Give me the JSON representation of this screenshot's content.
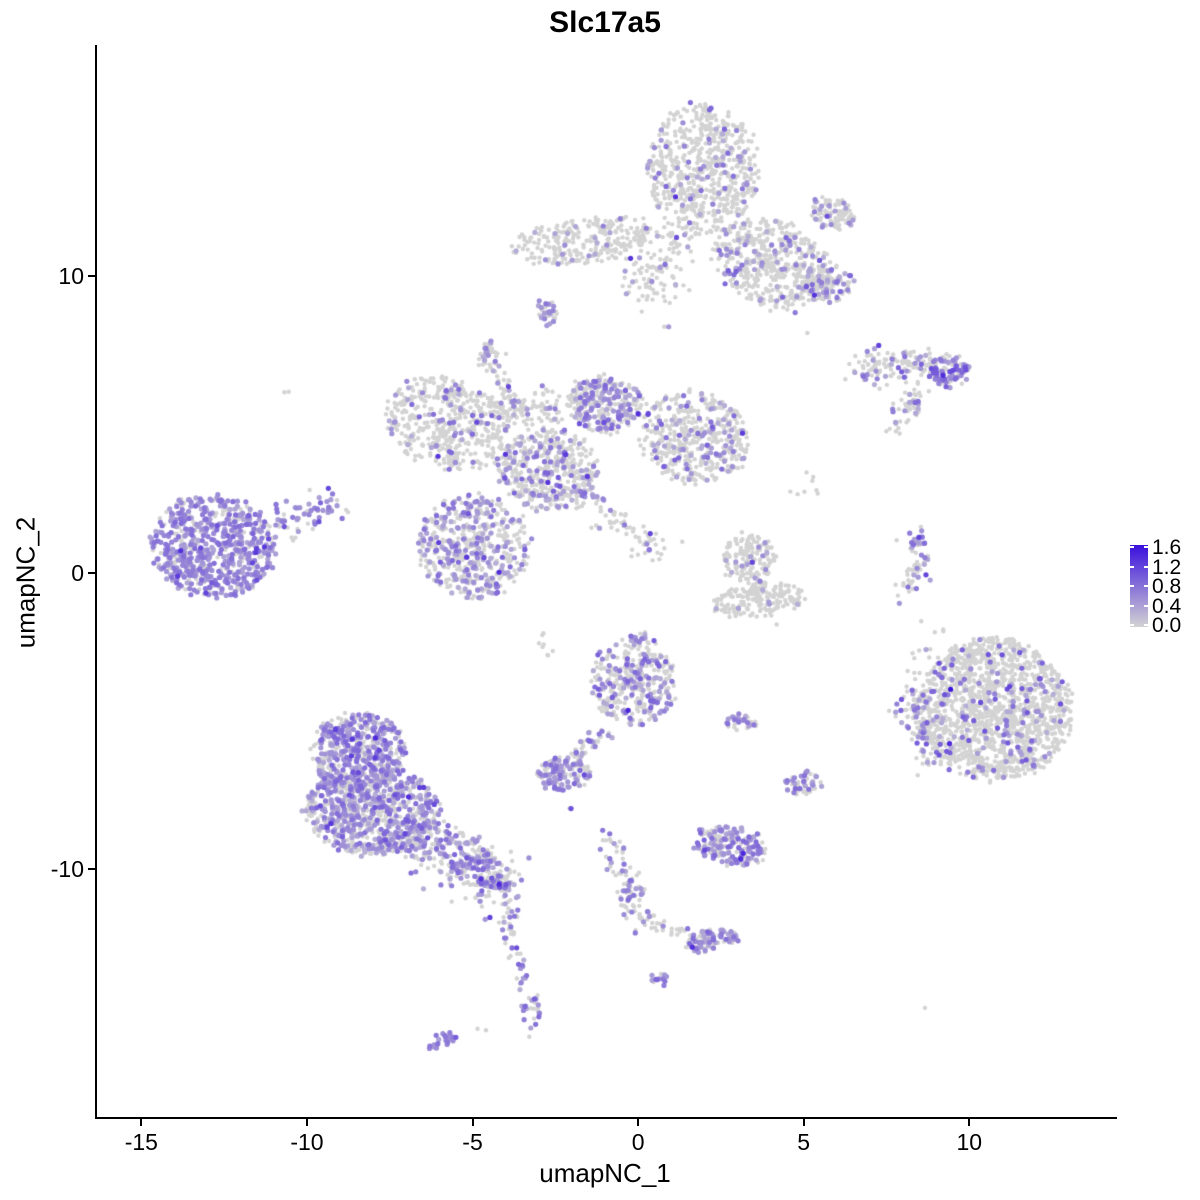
{
  "chart_data": {
    "type": "scatter",
    "title": "Slc17a5",
    "xlabel": "umapNC_1",
    "ylabel": "umapNC_2",
    "x_ticks": [
      -15,
      -10,
      -5,
      0,
      5,
      10
    ],
    "y_ticks": [
      10,
      0,
      -10
    ],
    "x_range": [
      -16.4,
      14.4
    ],
    "y_range": [
      -18.35,
      17.8
    ],
    "grid": "off",
    "legend_position": "right",
    "colorbar": {
      "labels": [
        "1.6",
        "1.2",
        "0.8",
        "0.4",
        "0.0"
      ],
      "values": [
        1.6,
        1.2,
        0.8,
        0.4,
        0.0
      ],
      "max_value": 1.6,
      "low_color": "#d3d3d3",
      "high_color": "#3a10dd"
    },
    "zero_expression_color": "#d3d3d3",
    "clusters": [
      {
        "name": "top-head",
        "kind": "blob",
        "cx": 1.9,
        "cy": 13.6,
        "rx": 1.7,
        "ry": 2.2,
        "rot": 0,
        "n": 650,
        "expr": 0.11,
        "vmin": 0.3,
        "vmax": 0.9,
        "pw": 1.8
      },
      {
        "name": "top-band",
        "kind": "blob",
        "cx": 4.0,
        "cy": 10.4,
        "rx": 1.9,
        "ry": 1.4,
        "rot": -30,
        "n": 520,
        "expr": 0.13,
        "vmin": 0.3,
        "vmax": 0.9,
        "pw": 1.8
      },
      {
        "name": "top-right-arm",
        "kind": "blob",
        "cx": 5.8,
        "cy": 12.1,
        "rx": 0.7,
        "ry": 0.5,
        "rot": -20,
        "n": 90,
        "expr": 0.2,
        "vmin": 0.3,
        "vmax": 0.8,
        "pw": 1.5
      },
      {
        "name": "top-left-arm",
        "kind": "blob",
        "cx": -1.75,
        "cy": 11.2,
        "rx": 2.2,
        "ry": 0.75,
        "rot": 8,
        "n": 260,
        "expr": 0.06,
        "vmin": 0.3,
        "vmax": 0.7,
        "pw": 1.5
      },
      {
        "name": "top-right-blob",
        "kind": "blob",
        "cx": 5.6,
        "cy": 9.75,
        "rx": 0.75,
        "ry": 0.6,
        "rot": 0,
        "n": 110,
        "expr": 0.3,
        "vmin": 0.3,
        "vmax": 0.9,
        "pw": 1.5
      },
      {
        "name": "small-blob-a5",
        "kind": "blob",
        "cx": -2.8,
        "cy": 8.8,
        "rx": 0.3,
        "ry": 0.45,
        "rot": 0,
        "n": 35,
        "expr": 0.5,
        "vmin": 0.3,
        "vmax": 0.8,
        "pw": 1.5
      },
      {
        "name": "top-stem",
        "kind": "trail",
        "path": [
          [
            0.8,
            11.5
          ],
          [
            0.3,
            9.4
          ]
        ],
        "w": 0.5,
        "n": 120,
        "expr": 0.1,
        "vmin": 0.3,
        "vmax": 0.8,
        "pw": 1.5
      },
      {
        "name": "small-blob-b1",
        "kind": "blob",
        "cx": -4.5,
        "cy": 7.3,
        "rx": 0.4,
        "ry": 0.5,
        "rot": 0,
        "n": 40,
        "expr": 0.45,
        "vmin": 0.3,
        "vmax": 0.8,
        "pw": 1.5
      },
      {
        "name": "trail-b2",
        "kind": "trail",
        "path": [
          [
            -4.2,
            6.6
          ],
          [
            -3.7,
            5.2
          ]
        ],
        "w": 0.12,
        "n": 28,
        "expr": 0.35,
        "vmin": 0.3,
        "vmax": 0.8,
        "pw": 1.5
      },
      {
        "name": "lone-dot-left",
        "kind": "blob",
        "cx": -10.7,
        "cy": 6.0,
        "rx": 0.07,
        "ry": 0.07,
        "rot": 0,
        "n": 2,
        "expr": 0,
        "vmin": 0.3,
        "vmax": 0.7,
        "pw": 1.5
      },
      {
        "name": "center-left-wing",
        "kind": "blob",
        "cx": -5.8,
        "cy": 5.0,
        "rx": 2.0,
        "ry": 1.5,
        "rot": -25,
        "n": 480,
        "expr": 0.1,
        "vmin": 0.3,
        "vmax": 0.9,
        "pw": 1.8
      },
      {
        "name": "center-bridge",
        "kind": "trail",
        "path": [
          [
            -4.4,
            5.6
          ],
          [
            -2.4,
            5.5
          ]
        ],
        "w": 0.35,
        "n": 110,
        "expr": 0.12,
        "vmin": 0.3,
        "vmax": 0.8,
        "pw": 1.5
      },
      {
        "name": "center-upper-mid",
        "kind": "blob",
        "cx": -1.1,
        "cy": 5.7,
        "rx": 1.1,
        "ry": 0.95,
        "rot": 0,
        "n": 300,
        "expr": 0.38,
        "vmin": 0.3,
        "vmax": 0.9,
        "pw": 1.8
      },
      {
        "name": "center-right-wing",
        "kind": "blob",
        "cx": 1.6,
        "cy": 4.6,
        "rx": 1.7,
        "ry": 1.5,
        "rot": -20,
        "n": 470,
        "expr": 0.22,
        "vmin": 0.3,
        "vmax": 0.95,
        "pw": 1.8
      },
      {
        "name": "center-mid",
        "kind": "blob",
        "cx": -2.8,
        "cy": 3.5,
        "rx": 1.5,
        "ry": 1.4,
        "rot": 0,
        "n": 420,
        "expr": 0.26,
        "vmin": 0.3,
        "vmax": 0.9,
        "pw": 1.8
      },
      {
        "name": "center-lower-lobe",
        "kind": "blob",
        "cx": -5.0,
        "cy": 0.9,
        "rx": 1.7,
        "ry": 1.75,
        "rot": 10,
        "n": 520,
        "expr": 0.36,
        "vmin": 0.3,
        "vmax": 0.9,
        "pw": 1.8
      },
      {
        "name": "center-streak",
        "kind": "trail",
        "path": [
          [
            -2.3,
            3.1
          ],
          [
            0.6,
            0.6
          ]
        ],
        "w": 0.25,
        "n": 90,
        "expr": 0.15,
        "vmin": 0.3,
        "vmax": 0.8,
        "pw": 1.5
      },
      {
        "name": "sparse-dots-c9",
        "kind": "blob",
        "cx": 5.0,
        "cy": 2.9,
        "rx": 0.45,
        "ry": 0.5,
        "rot": 0,
        "n": 8,
        "expr": 0.1,
        "vmin": 0.3,
        "vmax": 0.7,
        "pw": 1.5
      },
      {
        "name": "far-left-cluster",
        "kind": "blob",
        "cx": -12.9,
        "cy": 0.9,
        "rx": 1.9,
        "ry": 1.75,
        "rot": -10,
        "n": 680,
        "expr": 0.72,
        "vmin": 0.35,
        "vmax": 0.85,
        "pw": 1.2
      },
      {
        "name": "far-left-arm",
        "kind": "trail",
        "path": [
          [
            -11.3,
            1.5
          ],
          [
            -9.2,
            2.3
          ]
        ],
        "w": 0.3,
        "n": 70,
        "expr": 0.6,
        "vmin": 0.35,
        "vmax": 0.8,
        "pw": 1.2
      },
      {
        "name": "topright-strip",
        "kind": "trail",
        "path": [
          [
            6.6,
            6.9
          ],
          [
            8.9,
            7.05
          ]
        ],
        "w": 0.3,
        "n": 130,
        "expr": 0.25,
        "vmin": 0.3,
        "vmax": 0.9,
        "pw": 1.5
      },
      {
        "name": "topright-dense-end",
        "kind": "blob",
        "cx": 9.3,
        "cy": 6.8,
        "rx": 0.6,
        "ry": 0.5,
        "rot": 0,
        "n": 85,
        "expr": 0.7,
        "vmin": 0.4,
        "vmax": 1.1,
        "pw": 1.2
      },
      {
        "name": "topright-tail",
        "kind": "trail",
        "path": [
          [
            8.5,
            6.2
          ],
          [
            7.9,
            5.2
          ]
        ],
        "w": 0.2,
        "n": 40,
        "expr": 0.35,
        "vmin": 0.3,
        "vmax": 0.9,
        "pw": 1.5
      },
      {
        "name": "topright-dots",
        "kind": "blob",
        "cx": 7.7,
        "cy": 4.8,
        "rx": 0.3,
        "ry": 0.3,
        "rot": 0,
        "n": 6,
        "expr": 0.1,
        "vmin": 0.3,
        "vmax": 0.7,
        "pw": 1.5
      },
      {
        "name": "right-thin-strip",
        "kind": "trail",
        "path": [
          [
            8.3,
            1.5
          ],
          [
            8.45,
            0.3
          ],
          [
            7.9,
            -0.9
          ]
        ],
        "w": 0.18,
        "n": 65,
        "expr": 0.45,
        "vmin": 0.3,
        "vmax": 0.9,
        "pw": 1.5
      },
      {
        "name": "mid-small-upper",
        "kind": "blob",
        "cx": 3.3,
        "cy": 0.45,
        "rx": 0.8,
        "ry": 0.85,
        "rot": 0,
        "n": 150,
        "expr": 0.09,
        "vmin": 0.3,
        "vmax": 0.8,
        "pw": 1.8
      },
      {
        "name": "mid-small-lower",
        "kind": "blob",
        "cx": 3.6,
        "cy": -0.9,
        "rx": 1.4,
        "ry": 0.55,
        "rot": 8,
        "n": 190,
        "expr": 0.07,
        "vmin": 0.3,
        "vmax": 0.8,
        "pw": 1.8
      },
      {
        "name": "right-big-cluster",
        "kind": "blob",
        "cx": 10.7,
        "cy": -4.6,
        "rx": 2.3,
        "ry": 2.4,
        "rot": 15,
        "n": 1500,
        "expr": 0.105,
        "vmin": 0.3,
        "vmax": 1.1,
        "pw": 1.8
      },
      {
        "name": "right-big-tail",
        "kind": "trail",
        "path": [
          [
            8.15,
            -4.2
          ],
          [
            9.1,
            -6.4
          ]
        ],
        "w": 0.35,
        "n": 130,
        "expr": 0.3,
        "vmin": 0.3,
        "vmax": 1.1,
        "pw": 1.8
      },
      {
        "name": "right-scatter-dots",
        "kind": "blob",
        "cx": 8.6,
        "cy": -2.6,
        "rx": 0.7,
        "ry": 1.0,
        "rot": 0,
        "n": 14,
        "expr": 0.08,
        "vmin": 0.3,
        "vmax": 0.7,
        "pw": 1.5
      },
      {
        "name": "center-bottom-cluster",
        "kind": "blob",
        "cx": -0.2,
        "cy": -3.6,
        "rx": 1.25,
        "ry": 1.55,
        "rot": 0,
        "n": 360,
        "expr": 0.36,
        "vmin": 0.3,
        "vmax": 0.95,
        "pw": 1.8
      },
      {
        "name": "center-bottom-stem",
        "kind": "trail",
        "path": [
          [
            -1.0,
            -5.3
          ],
          [
            -2.1,
            -6.3
          ]
        ],
        "w": 0.15,
        "n": 45,
        "expr": 0.35,
        "vmin": 0.3,
        "vmax": 0.8,
        "pw": 1.5
      },
      {
        "name": "purple-blob-j",
        "kind": "blob",
        "cx": -2.3,
        "cy": -6.8,
        "rx": 0.8,
        "ry": 0.55,
        "rot": 0,
        "n": 130,
        "expr": 0.6,
        "vmin": 0.35,
        "vmax": 0.9,
        "pw": 1.5
      },
      {
        "name": "dot-below-j",
        "kind": "blob",
        "cx": -2.1,
        "cy": -8.0,
        "rx": 0.1,
        "ry": 0.1,
        "rot": 0,
        "n": 3,
        "expr": 0.3,
        "vmin": 0.3,
        "vmax": 0.6,
        "pw": 1.5
      },
      {
        "name": "small-strip-k",
        "kind": "blob",
        "cx": 3.0,
        "cy": -5.0,
        "rx": 0.55,
        "ry": 0.25,
        "rot": 0,
        "n": 32,
        "expr": 0.5,
        "vmin": 0.3,
        "vmax": 0.8,
        "pw": 1.5
      },
      {
        "name": "small-blob-l",
        "kind": "blob",
        "cx": 4.9,
        "cy": -7.1,
        "rx": 0.5,
        "ry": 0.4,
        "rot": 0,
        "n": 55,
        "expr": 0.55,
        "vmin": 0.35,
        "vmax": 0.9,
        "pw": 1.5
      },
      {
        "name": "bottom-mid-cluster",
        "kind": "blob",
        "cx": 2.7,
        "cy": -9.2,
        "rx": 1.1,
        "ry": 0.6,
        "rot": -10,
        "n": 190,
        "expr": 0.55,
        "vmin": 0.35,
        "vmax": 0.9,
        "pw": 1.5
      },
      {
        "name": "diag-trail-n",
        "kind": "trail",
        "path": [
          [
            -1.0,
            -8.9
          ],
          [
            -0.3,
            -10.6
          ],
          [
            -0.1,
            -11.7
          ]
        ],
        "w": 0.2,
        "n": 85,
        "expr": 0.35,
        "vmin": 0.3,
        "vmax": 0.85,
        "pw": 1.5
      },
      {
        "name": "diag-arm-n2",
        "kind": "trail",
        "path": [
          [
            0.0,
            -11.6
          ],
          [
            1.2,
            -12.1
          ]
        ],
        "w": 0.15,
        "n": 30,
        "expr": 0.2,
        "vmin": 0.3,
        "vmax": 0.8,
        "pw": 1.5
      },
      {
        "name": "elongated-o",
        "kind": "blob",
        "cx": 2.1,
        "cy": -12.4,
        "rx": 0.9,
        "ry": 0.35,
        "rot": 12,
        "n": 95,
        "expr": 0.5,
        "vmin": 0.35,
        "vmax": 0.9,
        "pw": 1.5
      },
      {
        "name": "tiny-purple-p",
        "kind": "blob",
        "cx": 0.6,
        "cy": -13.7,
        "rx": 0.22,
        "ry": 0.18,
        "rot": 0,
        "n": 14,
        "expr": 0.75,
        "vmin": 0.4,
        "vmax": 0.9,
        "pw": 1.2
      },
      {
        "name": "vert-trail-q",
        "kind": "trail",
        "path": [
          [
            -4.0,
            -11.1
          ],
          [
            -3.9,
            -12.3
          ],
          [
            -3.3,
            -14.2
          ],
          [
            -3.2,
            -15.3
          ]
        ],
        "w": 0.18,
        "n": 70,
        "expr": 0.5,
        "vmin": 0.3,
        "vmax": 0.9,
        "pw": 1.5
      },
      {
        "name": "lone-dot-q",
        "kind": "blob",
        "cx": -4.8,
        "cy": -15.4,
        "rx": 0.08,
        "ry": 0.08,
        "rot": 0,
        "n": 2,
        "expr": 0,
        "vmin": 0.3,
        "vmax": 0.6,
        "pw": 1.5
      },
      {
        "name": "small-diag-r",
        "kind": "blob",
        "cx": -6.0,
        "cy": -15.8,
        "rx": 0.45,
        "ry": 0.18,
        "rot": 25,
        "n": 26,
        "expr": 0.9,
        "vmin": 0.4,
        "vmax": 0.8,
        "pw": 1.2
      },
      {
        "name": "bottomleft-top-lobe",
        "kind": "blob",
        "cx": -8.5,
        "cy": -6.0,
        "rx": 1.4,
        "ry": 1.35,
        "rot": 0,
        "n": 480,
        "expr": 0.55,
        "vmin": 0.3,
        "vmax": 0.9,
        "pw": 1.5
      },
      {
        "name": "bottomleft-main",
        "kind": "blob",
        "cx": -8.1,
        "cy": -8.0,
        "rx": 2.1,
        "ry": 1.5,
        "rot": -5,
        "n": 820,
        "expr": 0.55,
        "vmin": 0.3,
        "vmax": 0.9,
        "pw": 1.5
      },
      {
        "name": "bottomleft-tail",
        "kind": "trail",
        "path": [
          [
            -6.6,
            -8.9
          ],
          [
            -4.3,
            -10.4
          ]
        ],
        "w": 0.45,
        "n": 300,
        "expr": 0.45,
        "vmin": 0.3,
        "vmax": 0.9,
        "pw": 1.5
      },
      {
        "name": "bottomleft-tail-tip",
        "kind": "blob",
        "cx": -4.3,
        "cy": -10.5,
        "rx": 0.4,
        "ry": 0.3,
        "rot": 0,
        "n": 50,
        "expr": 0.45,
        "vmin": 0.3,
        "vmax": 0.9,
        "pw": 1.5
      },
      {
        "name": "tail-sparse",
        "kind": "trail",
        "path": [
          [
            -5.0,
            -10.8
          ],
          [
            -4.6,
            -11.6
          ]
        ],
        "w": 0.15,
        "n": 8,
        "expr": 0.3,
        "vmin": 0.3,
        "vmax": 0.7,
        "pw": 1.5
      },
      {
        "name": "lone-dot-x1",
        "kind": "blob",
        "cx": 4.1,
        "cy": -1.9,
        "rx": 0.07,
        "ry": 0.07,
        "rot": 0,
        "n": 1,
        "expr": 0,
        "vmin": 0.3,
        "vmax": 0.6,
        "pw": 1.5
      },
      {
        "name": "lone-dot-x2",
        "kind": "blob",
        "cx": 5.1,
        "cy": 8.0,
        "rx": 0.07,
        "ry": 0.07,
        "rot": 0,
        "n": 1,
        "expr": 0,
        "vmin": 0.3,
        "vmax": 0.6,
        "pw": 1.5
      },
      {
        "name": "sparse-connector",
        "kind": "blob",
        "cx": -2.9,
        "cy": -2.5,
        "rx": 0.3,
        "ry": 0.4,
        "rot": 0,
        "n": 8,
        "expr": 0.1,
        "vmin": 0.3,
        "vmax": 0.6,
        "pw": 1.5
      },
      {
        "name": "lone-dot-x4",
        "kind": "blob",
        "cx": 8.6,
        "cy": -14.7,
        "rx": 0.07,
        "ry": 0.07,
        "rot": 0,
        "n": 1,
        "expr": 0,
        "vmin": 0.3,
        "vmax": 0.6,
        "pw": 1.5
      }
    ],
    "point_radius_px": {
      "grey": 2.2,
      "expressing": 2.6
    },
    "dark_outlier_prob": 0.05
  }
}
